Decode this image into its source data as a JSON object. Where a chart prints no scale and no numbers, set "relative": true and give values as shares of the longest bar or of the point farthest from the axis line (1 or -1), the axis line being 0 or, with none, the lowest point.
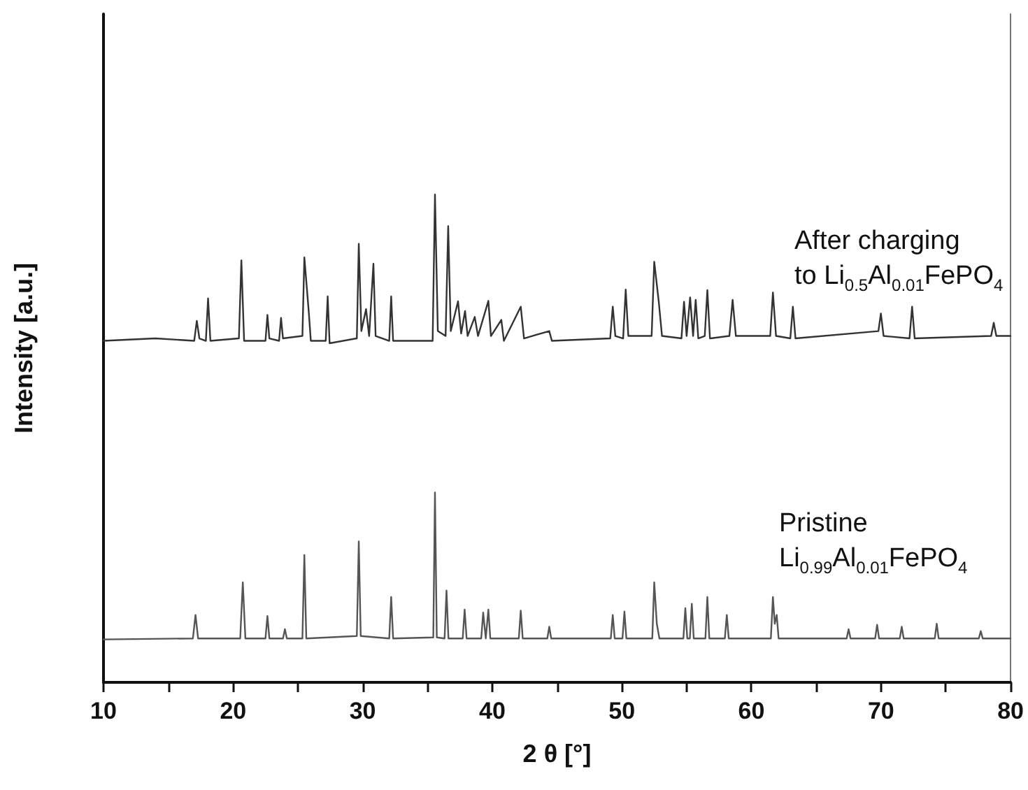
{
  "chart_data": {
    "type": "line",
    "relative": true,
    "xlabel": "2 θ [°]",
    "ylabel": "Intensity [a.u.]",
    "xlim": [
      10,
      80
    ],
    "xticks": [
      10,
      {
        "value": 15,
        "label": null
      },
      20,
      {
        "value": 25,
        "label": null
      },
      30,
      {
        "value": 35,
        "label": null
      },
      40,
      {
        "value": 45,
        "label": null
      },
      50,
      {
        "value": 55,
        "label": null
      },
      60,
      {
        "value": 65,
        "label": null
      },
      70,
      {
        "value": 75,
        "label": null
      },
      80
    ],
    "grid": false,
    "marker": "none",
    "line_style": "solid",
    "annotations": [
      "After charging\nto Li$_{0.5}$Al$_{0.01}$FePO$_{4}$",
      "Pristine\nLi$_{0.99}$Al$_{0.01}$FePO$_{4}$"
    ],
    "series": [
      {
        "color": "#333333",
        "x": [
          10,
          14,
          17.0,
          17.2,
          17.4,
          17.9,
          18.07,
          18.25,
          20.45,
          20.64,
          20.85,
          22.5,
          22.65,
          22.8,
          23.55,
          23.7,
          23.85,
          25.35,
          25.5,
          25.85,
          26.0,
          27.15,
          27.3,
          27.45,
          29.55,
          29.7,
          29.9,
          30.26,
          30.5,
          30.83,
          31.0,
          32.05,
          32.2,
          32.35,
          35.4,
          35.58,
          35.8,
          36.4,
          36.6,
          36.8,
          37.36,
          37.6,
          37.9,
          38.1,
          38.65,
          38.9,
          39.7,
          39.9,
          40.7,
          40.9,
          42.2,
          42.45,
          44.4,
          44.6,
          49.1,
          49.3,
          49.5,
          50.1,
          50.3,
          50.5,
          52.3,
          52.5,
          52.85,
          53.1,
          54.6,
          54.8,
          55.0,
          55.27,
          55.5,
          55.7,
          55.9,
          56.4,
          56.6,
          56.8,
          58.3,
          58.55,
          58.8,
          61.45,
          61.66,
          61.9,
          63.0,
          63.2,
          63.4,
          69.8,
          69.99,
          70.2,
          72.2,
          72.4,
          72.6,
          78.5,
          78.7,
          78.9,
          80
        ],
        "values": [
          0.7,
          0.705,
          0.7,
          0.741,
          0.705,
          0.7,
          0.787,
          0.7,
          0.705,
          0.865,
          0.7,
          0.7,
          0.753,
          0.705,
          0.7,
          0.747,
          0.705,
          0.71,
          0.871,
          0.756,
          0.7,
          0.7,
          0.791,
          0.695,
          0.705,
          0.899,
          0.72,
          0.765,
          0.71,
          0.858,
          0.71,
          0.7,
          0.791,
          0.7,
          0.7,
          1.0,
          0.72,
          0.71,
          0.935,
          0.72,
          0.781,
          0.715,
          0.761,
          0.71,
          0.749,
          0.71,
          0.782,
          0.71,
          0.743,
          0.7,
          0.77,
          0.705,
          0.72,
          0.7,
          0.705,
          0.77,
          0.71,
          0.705,
          0.805,
          0.71,
          0.71,
          0.862,
          0.78,
          0.71,
          0.705,
          0.78,
          0.71,
          0.789,
          0.71,
          0.784,
          0.705,
          0.71,
          0.804,
          0.705,
          0.71,
          0.784,
          0.71,
          0.71,
          0.799,
          0.71,
          0.705,
          0.77,
          0.705,
          0.72,
          0.756,
          0.71,
          0.705,
          0.77,
          0.705,
          0.71,
          0.737,
          0.71,
          0.71
        ]
      },
      {
        "color": "#555555",
        "x": [
          10,
          16.9,
          17.1,
          17.3,
          20.55,
          20.75,
          20.95,
          22.5,
          22.65,
          22.8,
          23.85,
          24.0,
          24.15,
          25.35,
          25.5,
          25.65,
          29.55,
          29.7,
          29.85,
          32.05,
          32.2,
          32.35,
          35.45,
          35.58,
          35.72,
          36.32,
          36.47,
          36.62,
          37.72,
          37.87,
          38.02,
          39.15,
          39.3,
          39.5,
          39.7,
          39.85,
          42.05,
          42.2,
          42.35,
          44.25,
          44.4,
          44.55,
          49.15,
          49.3,
          49.45,
          50.05,
          50.2,
          50.35,
          52.35,
          52.5,
          52.7,
          52.9,
          54.75,
          54.9,
          55.05,
          55.25,
          55.4,
          55.55,
          56.45,
          56.6,
          56.75,
          57.95,
          58.1,
          58.25,
          61.5,
          61.66,
          61.8,
          61.95,
          62.1,
          67.35,
          67.5,
          67.65,
          69.55,
          69.7,
          69.85,
          71.45,
          71.6,
          71.75,
          74.15,
          74.3,
          74.45,
          77.55,
          77.7,
          77.85,
          80
        ],
        "values": [
          0.088,
          0.09,
          0.138,
          0.09,
          0.09,
          0.205,
          0.09,
          0.09,
          0.136,
          0.09,
          0.09,
          0.109,
          0.09,
          0.09,
          0.261,
          0.09,
          0.095,
          0.289,
          0.095,
          0.09,
          0.175,
          0.09,
          0.092,
          0.389,
          0.092,
          0.09,
          0.188,
          0.09,
          0.09,
          0.149,
          0.09,
          0.09,
          0.143,
          0.09,
          0.149,
          0.09,
          0.09,
          0.147,
          0.09,
          0.09,
          0.114,
          0.09,
          0.09,
          0.138,
          0.09,
          0.09,
          0.145,
          0.09,
          0.09,
          0.205,
          0.12,
          0.09,
          0.09,
          0.152,
          0.09,
          0.09,
          0.161,
          0.09,
          0.09,
          0.175,
          0.09,
          0.09,
          0.138,
          0.09,
          0.09,
          0.175,
          0.12,
          0.138,
          0.09,
          0.09,
          0.109,
          0.09,
          0.09,
          0.118,
          0.09,
          0.09,
          0.114,
          0.09,
          0.09,
          0.12,
          0.09,
          0.09,
          0.105,
          0.09,
          0.09
        ]
      }
    ]
  }
}
